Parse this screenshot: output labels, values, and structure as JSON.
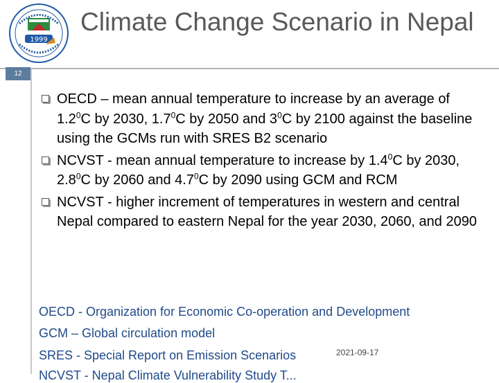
{
  "slide": {
    "title": "Climate Change Scenario in Nepal",
    "page_number": "12",
    "date": "2021-09-17",
    "logo": {
      "icon": "institute-seal-logo",
      "year_text": "1999"
    }
  },
  "bullets": [
    {
      "segments": [
        {
          "t": "OECD – mean annual temperature to increase by an average of 1.2"
        },
        {
          "sup": "0"
        },
        {
          "t": "C by 2030, 1.7"
        },
        {
          "sup": "0"
        },
        {
          "t": "C by 2050 and 3"
        },
        {
          "sup": "0"
        },
        {
          "t": "C by 2100 against the baseline using the GCMs run with SRES B2 scenario"
        }
      ]
    },
    {
      "segments": [
        {
          "t": "NCVST - mean annual temperature to increase by 1.4"
        },
        {
          "sup": "0"
        },
        {
          "t": "C by 2030, 2.8"
        },
        {
          "sup": "0"
        },
        {
          "t": "C by 2060 and 4.7"
        },
        {
          "sup": "0"
        },
        {
          "t": "C by 2090 using GCM and RCM"
        }
      ]
    },
    {
      "segments": [
        {
          "t": "NCVST - higher increment of temperatures in western and central Nepal compared to eastern Nepal for the year 2030, 2060, and 2090"
        }
      ]
    }
  ],
  "notes": [
    "OECD - Organization for Economic Co-operation and Development",
    "GCM – Global circulation model",
    "SRES - Special Report on Emission Scenarios",
    "NCVST - Nepal Climate Vulnerability Study T..."
  ],
  "colors": {
    "title": "#595959",
    "note_text": "#1f4a8a",
    "page_badge": "#5d7d9f"
  }
}
